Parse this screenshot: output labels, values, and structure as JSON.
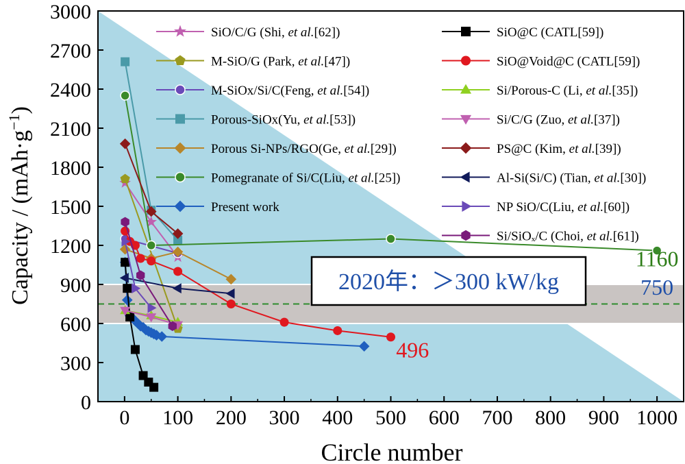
{
  "chart_data": {
    "type": "line",
    "xlabel": "Circle number",
    "ylabel_main": "Capacity / (mAh·g",
    "ylabel_sup": "−1",
    "ylabel_close": ")",
    "xlim": [
      -50,
      1050
    ],
    "ylim": [
      0,
      3000
    ],
    "x_ticks": [
      0,
      100,
      200,
      300,
      400,
      500,
      600,
      700,
      800,
      900,
      1000
    ],
    "y_ticks": [
      0,
      300,
      600,
      900,
      1200,
      1500,
      1800,
      2100,
      2400,
      2700,
      3000
    ],
    "grid": false,
    "legend_position": "top, two columns",
    "background_triangle_color": "#add8e6",
    "band": {
      "y_from": 600,
      "y_to": 900,
      "color": "#c9c4c2"
    },
    "reference_line": {
      "y": 750,
      "color": "#2e8b2e",
      "style": "dashed"
    },
    "band_label": {
      "text_main": "2020年：",
      "text_value": "＞300 kW/kg",
      "color": "#1f4fa8",
      "y": 1000,
      "x": 570
    },
    "annotations": [
      {
        "text": "1160",
        "x": 1000,
        "y": 1040,
        "color": "#2e7d18"
      },
      {
        "text": "750",
        "x": 1000,
        "y": 820,
        "color": "#1f4fa8"
      },
      {
        "text": "496",
        "x": 510,
        "y": 340,
        "color": "#e0181f"
      }
    ],
    "series": [
      {
        "name": "SiO/C/G (Shi, et al.[62])",
        "name_plain": "SiO/C/G (Shi, ",
        "name_italic": "et al.",
        "name_tail": "[62])",
        "color": "#c060b0",
        "marker": "star",
        "column": 0,
        "x": [
          1,
          50,
          100
        ],
        "y": [
          1680,
          1380,
          1110
        ]
      },
      {
        "name": "M-SiO/G (Park, et al.[47])",
        "name_plain": "M-SiO/G (Park, ",
        "name_italic": "et al.",
        "name_tail": "[47])",
        "color": "#9a9a20",
        "marker": "pentagon",
        "column": 0,
        "x": [
          1,
          100
        ],
        "y": [
          1710,
          560
        ]
      },
      {
        "name": "M-SiOx/Si/C(Feng, et al.[54])",
        "name_plain": "M-SiOx/Si/C(Feng, ",
        "name_italic": "et al.",
        "name_tail": "[54])",
        "color": "#6a4ab8",
        "marker": "sphere",
        "column": 0,
        "x": [
          1,
          100
        ],
        "y": [
          1250,
          1140
        ]
      },
      {
        "name": "Porous-SiOx(Yu, et al.[53])",
        "name_plain": "Porous-SiOx(Yu, ",
        "name_italic": "et al.",
        "name_tail": "[53])",
        "color": "#4a9aa8",
        "marker": "square",
        "column": 0,
        "x": [
          1,
          50,
          100
        ],
        "y": [
          2610,
          1470,
          1240
        ]
      },
      {
        "name": "Porous Si-NPs/RGO(Ge, et al.[29])",
        "name_plain": "Porous Si-NPs/RGO(Ge, ",
        "name_italic": "et al.",
        "name_tail": "[29])",
        "color": "#b8862a",
        "marker": "diamond",
        "column": 0,
        "x": [
          1,
          50,
          100,
          200
        ],
        "y": [
          1170,
          1100,
          1150,
          940
        ]
      },
      {
        "name": "Pomegranate of Si/C(Liu, et al.[25])",
        "name_plain": "Pomegranate of Si/C(Liu, ",
        "name_italic": "et al.",
        "name_tail": "[25])",
        "color": "#3a8a2a",
        "marker": "sphere",
        "column": 0,
        "x": [
          1,
          50,
          500,
          1000
        ],
        "y": [
          2350,
          1200,
          1250,
          1160
        ]
      },
      {
        "name": "Present work",
        "name_plain": "Present work",
        "name_italic": "",
        "name_tail": "",
        "color": "#1f5fbf",
        "marker": "diamond",
        "column": 0,
        "x": [
          1,
          5,
          10,
          15,
          20,
          25,
          30,
          35,
          40,
          45,
          50,
          55,
          60,
          70,
          450
        ],
        "y": [
          1070,
          780,
          660,
          640,
          620,
          600,
          580,
          570,
          550,
          540,
          530,
          520,
          510,
          500,
          425
        ]
      },
      {
        "name": "SiO@C (CATL[59])",
        "name_plain": "SiO@C (CATL[59])",
        "name_italic": "",
        "name_tail": "",
        "color": "#000000",
        "marker": "square",
        "column": 1,
        "x": [
          1,
          5,
          10,
          20,
          35,
          45,
          55
        ],
        "y": [
          1070,
          870,
          650,
          400,
          200,
          150,
          110
        ]
      },
      {
        "name": "SiO@Void@C (CATL[59])",
        "name_plain": "SiO@Void@C (CATL[59])",
        "name_italic": "",
        "name_tail": "",
        "color": "#e0181f",
        "marker": "circle",
        "column": 1,
        "x": [
          1,
          10,
          20,
          30,
          50,
          100,
          200,
          300,
          400,
          500
        ],
        "y": [
          1310,
          1230,
          1200,
          1100,
          1080,
          1000,
          750,
          610,
          545,
          496
        ]
      },
      {
        "name": "Si/Porous-C (Li, et al.[35])",
        "name_plain": "Si/Porous-C (Li, ",
        "name_italic": "et al.",
        "name_tail": "[35])",
        "color": "#8fd020",
        "marker": "triangle-up",
        "column": 1,
        "x": [
          1,
          50,
          100
        ],
        "y": [
          700,
          660,
          610
        ]
      },
      {
        "name": "Si/C/G (Zuo, et al.[37])",
        "name_plain": "Si/C/G (Zuo, ",
        "name_italic": "et al.",
        "name_tail": "[37])",
        "color": "#c060b0",
        "marker": "triangle-down",
        "column": 1,
        "x": [
          1,
          50,
          100
        ],
        "y": [
          700,
          650,
          590
        ]
      },
      {
        "name": "PS@C (Kim, et al.[39])",
        "name_plain": "PS@C (Kim, ",
        "name_italic": "et al.",
        "name_tail": "[39])",
        "color": "#8b1a1a",
        "marker": "diamond",
        "column": 1,
        "x": [
          1,
          50,
          100
        ],
        "y": [
          1980,
          1460,
          1290
        ]
      },
      {
        "name": "Al-Si(Si/C) (Tian, et al.[30])",
        "name_plain": "Al-Si(Si/C) (Tian, ",
        "name_italic": "et al.",
        "name_tail": "[30])",
        "color": "#101a5a",
        "marker": "triangle-left",
        "column": 1,
        "x": [
          1,
          100,
          200
        ],
        "y": [
          950,
          870,
          830
        ]
      },
      {
        "name": "NP SiO/C(Liu, et al.[60])",
        "name_plain": "NP SiO/C(Liu, ",
        "name_italic": "et al.",
        "name_tail": "[60])",
        "color": "#6a4ab8",
        "marker": "triangle-right",
        "column": 1,
        "x": [
          1,
          20,
          50
        ],
        "y": [
          1230,
          870,
          720
        ]
      },
      {
        "name": "Si/SiOx/C (Choi, et al.[61])",
        "name_plain": "Si/SiOₓ/C (Choi, ",
        "name_italic": "et al.",
        "name_tail": "[61])",
        "color": "#7a1a7a",
        "marker": "hexagon",
        "column": 1,
        "x": [
          1,
          30,
          90
        ],
        "y": [
          1380,
          970,
          580
        ]
      }
    ]
  }
}
